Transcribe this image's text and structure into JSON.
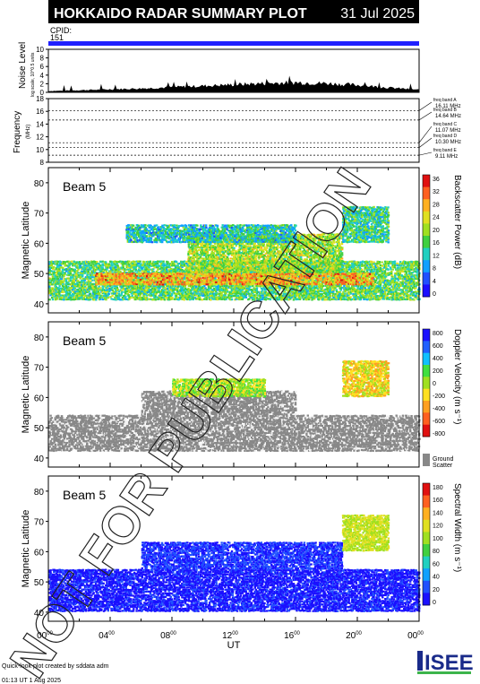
{
  "header": {
    "title": "HOKKAIDO RADAR SUMMARY PLOT",
    "date": "31 Jul 2025",
    "cpid_label": "CPID:",
    "cpid_value": "151"
  },
  "noise_panel": {
    "ylabel": "Noise Level",
    "ylabel_sub": "log scale, 10^0.5 units",
    "ticks": [
      "10",
      "8",
      "6",
      "4",
      "2",
      "0"
    ]
  },
  "frequency_panel": {
    "ylabel": "Frequency",
    "ylabel_sub": "(MHz)",
    "ticks": [
      "18",
      "16",
      "14",
      "12",
      "10",
      "8"
    ],
    "bands": [
      {
        "label": "freq band A",
        "value": "16.11 MHz"
      },
      {
        "label": "freq band B",
        "value": "14.64 MHz"
      },
      {
        "label": "freq band C",
        "value": "11.07 MHz"
      },
      {
        "label": "freq band D",
        "value": "10.30 MHz"
      },
      {
        "label": "freq band E",
        "value": "9.11 MHz"
      }
    ]
  },
  "panels": [
    {
      "beam": "Beam  5",
      "cb_label": "Backscatter Power (dB)",
      "cb_ticks": [
        "36",
        "32",
        "28",
        "24",
        "20",
        "16",
        "12",
        "8",
        "4",
        "0"
      ]
    },
    {
      "beam": "Beam  5",
      "cb_label": "Doppler Velocity (m s⁻¹)",
      "cb_ticks": [
        "800",
        "600",
        "400",
        "200",
        "0",
        "-200",
        "-400",
        "-600",
        "-800"
      ],
      "gs_label1": "Ground",
      "gs_label2": "Scatter"
    },
    {
      "beam": "Beam  5",
      "cb_label": "Spectral Width (m s⁻¹)",
      "cb_ticks": [
        "180",
        "160",
        "140",
        "120",
        "100",
        "80",
        "60",
        "40",
        "20",
        "0"
      ]
    }
  ],
  "axes": {
    "ylabel": "Magnetic Latitude",
    "lat_ticks": [
      "80",
      "70",
      "60",
      "50",
      "40"
    ],
    "xlabel": "UT",
    "time_ticks": [
      "00",
      "04",
      "08",
      "12",
      "16",
      "20",
      "00"
    ],
    "time_sup": "00"
  },
  "footer": {
    "line1": "Quick-look plot created by sddata adm",
    "line2": "01:13 UT  1 Aug 2025",
    "logo": "ISEE",
    "watermark": "NOT FOR PUBLICATION"
  },
  "colors": {
    "title_bar": "#000000",
    "cpid_bar": "#2020ff",
    "ground_scatter": "#888888"
  },
  "chart_data": [
    {
      "type": "area",
      "title": "Noise Level",
      "x": [
        0,
        2,
        4,
        6,
        8,
        10,
        12,
        14,
        16,
        18,
        20,
        22,
        24
      ],
      "values": [
        0.3,
        0.5,
        0.7,
        0.9,
        1.2,
        1.5,
        1.8,
        2.1,
        2.3,
        2.1,
        1.7,
        1.1,
        0.6
      ],
      "xlim": [
        0,
        24
      ],
      "ylim": [
        0,
        10
      ]
    },
    {
      "type": "line",
      "title": "Frequency",
      "bands_mhz": [
        16.11,
        14.64,
        11.07,
        10.3,
        9.11
      ],
      "ylim": [
        8,
        18
      ],
      "series": [
        {
          "x": [
            0,
            24
          ],
          "values": [
            16.11,
            16.11
          ]
        },
        {
          "x": [
            0,
            24
          ],
          "values": [
            14.64,
            14.64
          ]
        },
        {
          "x": [
            0,
            24
          ],
          "values": [
            11.07,
            11.07
          ]
        },
        {
          "x": [
            0,
            24
          ],
          "values": [
            10.3,
            10.3
          ]
        },
        {
          "x": [
            0,
            24
          ],
          "values": [
            9.11,
            9.11
          ]
        }
      ]
    },
    {
      "type": "heatmap",
      "title": "Backscatter Power (dB)",
      "xlim": [
        0,
        24
      ],
      "ylim": [
        37,
        85
      ],
      "zlim": [
        0,
        36
      ],
      "xlabel": "UT",
      "ylabel": "Magnetic Latitude",
      "regions": [
        {
          "t0": 0,
          "t1": 24,
          "lat0": 41,
          "lat1": 54,
          "value": 18
        },
        {
          "t0": 3,
          "t1": 21,
          "lat0": 46,
          "lat1": 50,
          "value": 30
        },
        {
          "t0": 9,
          "t1": 19,
          "lat0": 50,
          "lat1": 63,
          "value": 22
        },
        {
          "t0": 5,
          "t1": 16,
          "lat0": 60,
          "lat1": 66,
          "value": 14
        },
        {
          "t0": 19,
          "t1": 22,
          "lat0": 60,
          "lat1": 72,
          "value": 16
        }
      ]
    },
    {
      "type": "heatmap",
      "title": "Doppler Velocity (m s⁻¹)",
      "xlim": [
        0,
        24
      ],
      "ylim": [
        37,
        85
      ],
      "zlim": [
        -800,
        800
      ],
      "xlabel": "UT",
      "ylabel": "Magnetic Latitude",
      "regions": [
        {
          "t0": 0,
          "t1": 24,
          "lat0": 42,
          "lat1": 54,
          "value": "ground scatter"
        },
        {
          "t0": 6,
          "t1": 16,
          "lat0": 54,
          "lat1": 62,
          "value": "ground scatter"
        },
        {
          "t0": 8,
          "t1": 14,
          "lat0": 60,
          "lat1": 66,
          "value": 0
        },
        {
          "t0": 19,
          "t1": 22,
          "lat0": 60,
          "lat1": 72,
          "value": -200
        }
      ]
    },
    {
      "type": "heatmap",
      "title": "Spectral Width (m s⁻¹)",
      "xlim": [
        0,
        24
      ],
      "ylim": [
        37,
        85
      ],
      "zlim": [
        0,
        180
      ],
      "xlabel": "UT",
      "ylabel": "Magnetic Latitude",
      "regions": [
        {
          "t0": 0,
          "t1": 24,
          "lat0": 40,
          "lat1": 54,
          "value": 10
        },
        {
          "t0": 6,
          "t1": 19,
          "lat0": 54,
          "lat1": 63,
          "value": 20
        },
        {
          "t0": 19,
          "t1": 22,
          "lat0": 60,
          "lat1": 72,
          "value": 120
        }
      ]
    }
  ]
}
